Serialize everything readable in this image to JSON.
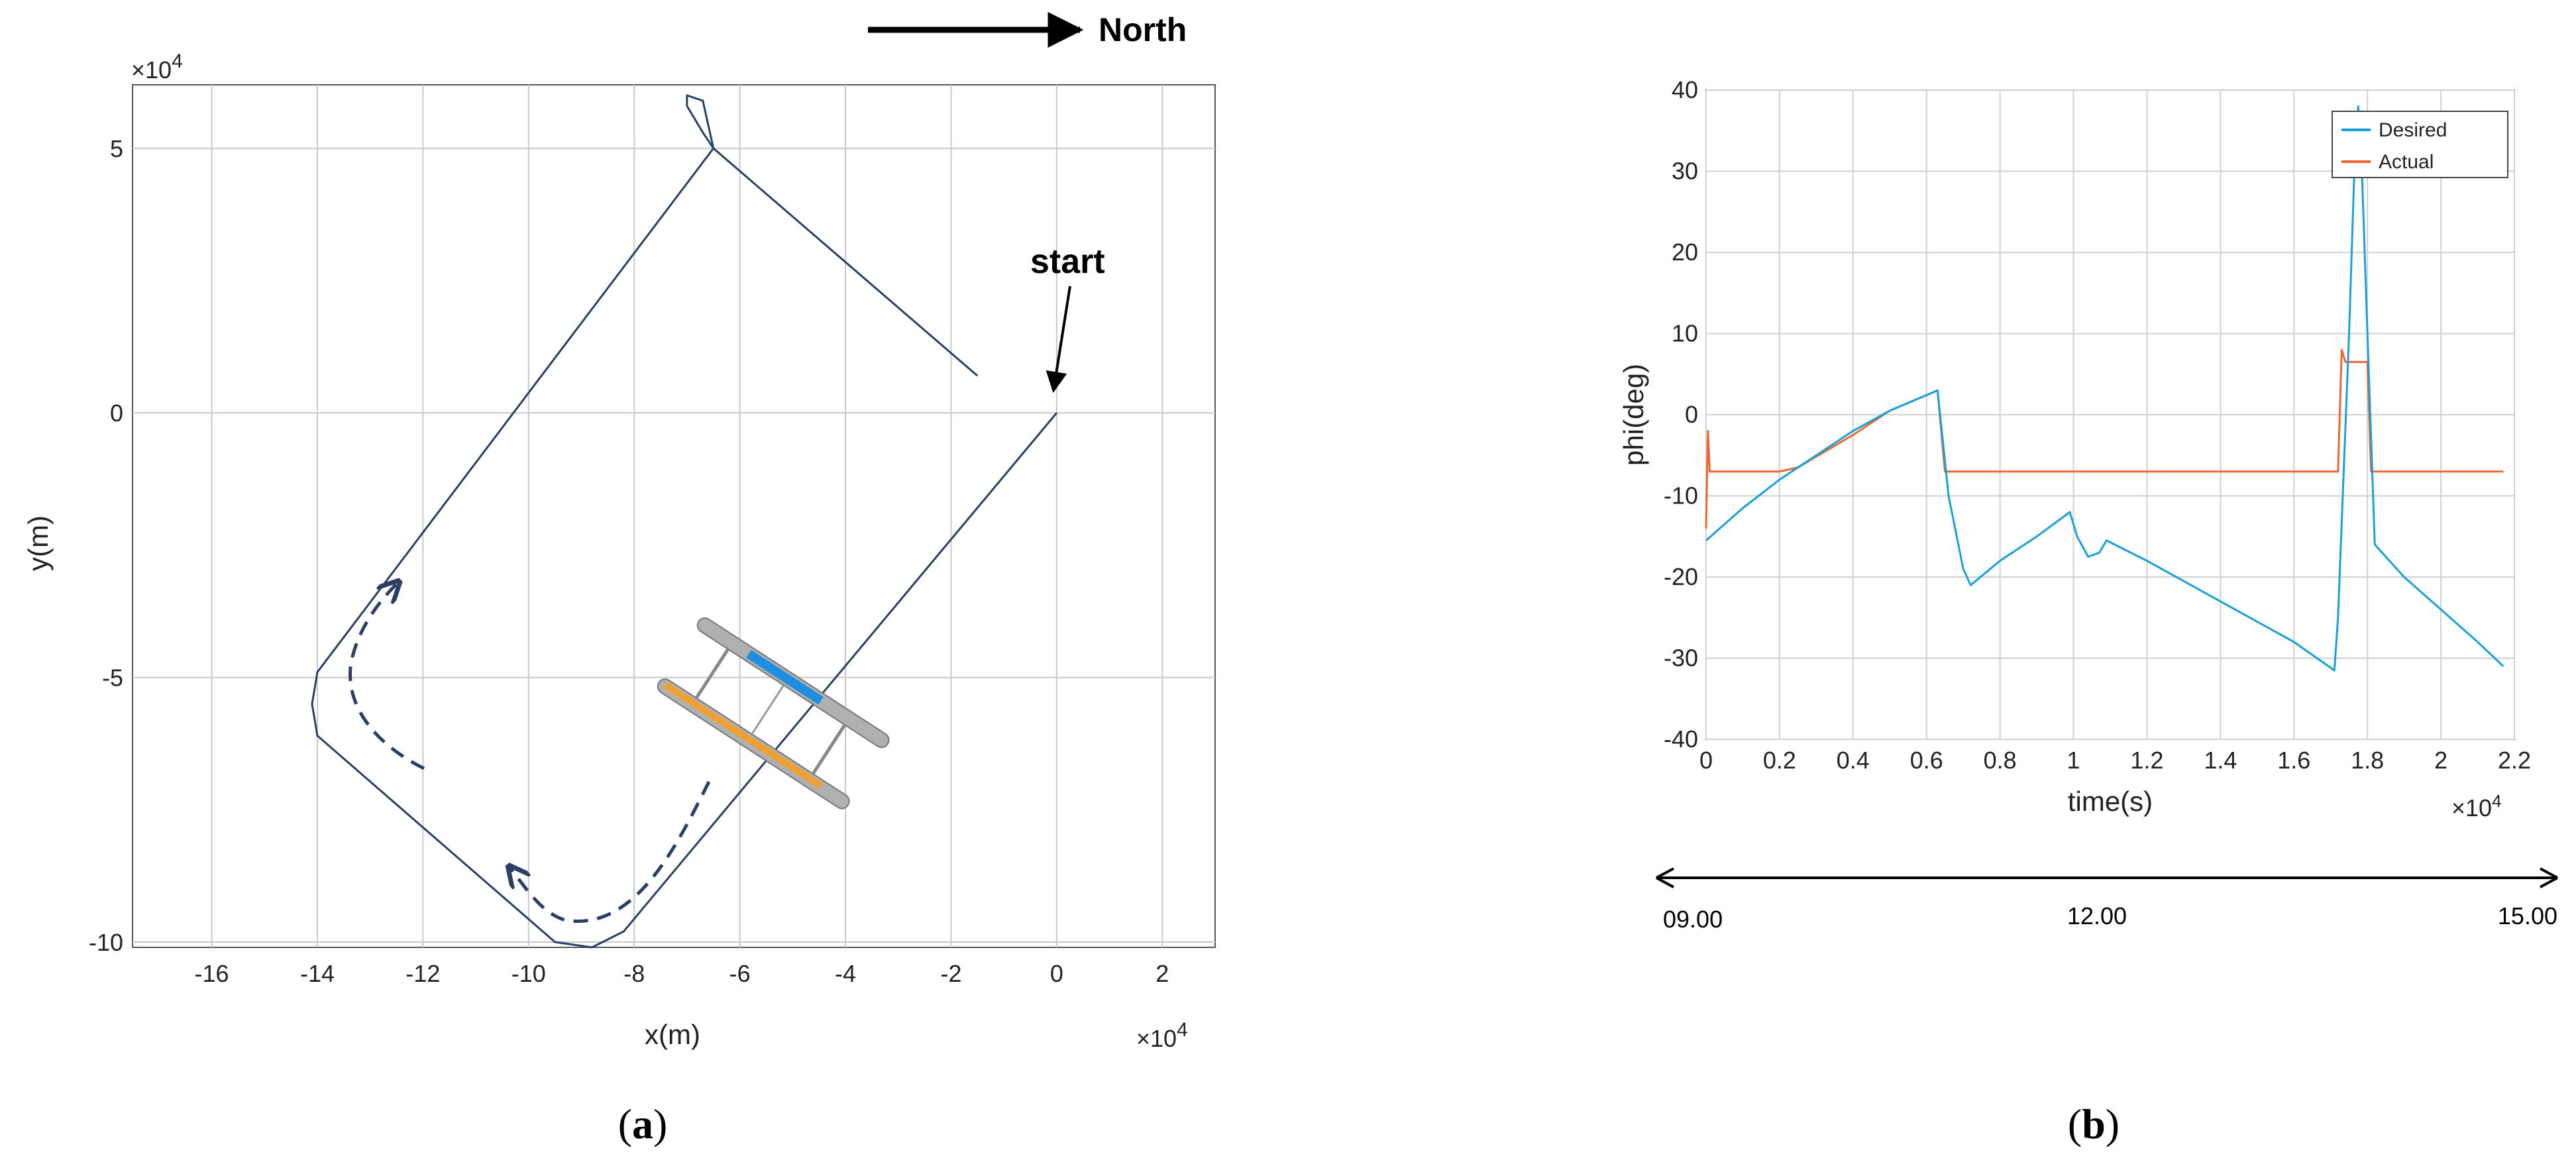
{
  "chart_data": [
    {
      "type": "line",
      "panel_label": "a",
      "xlabel": "x(m)",
      "ylabel": "y(m)",
      "x_exponent": "×10",
      "x_exponent_power": "4",
      "y_exponent": "×10",
      "y_exponent_power": "4",
      "xlim": [
        -17.5,
        3
      ],
      "ylim": [
        -10.1,
        6.2
      ],
      "xticks": [
        -16,
        -14,
        -12,
        -10,
        -8,
        -6,
        -4,
        -2,
        0,
        2
      ],
      "yticks": [
        -10,
        -5,
        0,
        5
      ],
      "grid": true,
      "series": [
        {
          "x": [
            -1.5,
            -6.5,
            -6.7,
            -7.0,
            -7.0,
            -6.7,
            -6.5,
            -14.0,
            -14.1,
            -14.0,
            -9.5,
            -8.8,
            -8.2,
            0
          ],
          "y": [
            0.7,
            5.0,
            5.3,
            5.8,
            6.0,
            5.9,
            5.0,
            -4.9,
            -5.5,
            -6.1,
            -10.0,
            -10.1,
            -9.8,
            0
          ]
        }
      ],
      "annotations": {
        "start": "start",
        "north": "North"
      },
      "color": "#2a3f63"
    },
    {
      "type": "line",
      "panel_label": "b",
      "xlabel": "time(s)",
      "ylabel": "phi(deg)",
      "x_exponent": "×10",
      "x_exponent_power": "4",
      "xlim": [
        0,
        2.2
      ],
      "ylim": [
        -40,
        40
      ],
      "xticks": [
        0,
        0.2,
        0.4,
        0.6,
        0.8,
        1,
        1.2,
        1.4,
        1.6,
        1.8,
        2,
        2.2
      ],
      "yticks": [
        -40,
        -30,
        -20,
        -10,
        0,
        10,
        20,
        30,
        40
      ],
      "grid": true,
      "legend": "top-right",
      "series": [
        {
          "name": "Desired",
          "color": "#1aa0d8",
          "x": [
            0,
            0.1,
            0.2,
            0.3,
            0.4,
            0.5,
            0.63,
            0.66,
            0.7,
            0.72,
            0.8,
            0.9,
            0.99,
            1.01,
            1.04,
            1.07,
            1.09,
            1.2,
            1.4,
            1.6,
            1.71,
            1.72,
            1.75,
            1.765,
            1.775,
            1.785,
            1.8,
            1.82,
            1.9,
            2.0,
            2.1,
            2.17
          ],
          "y": [
            -15.5,
            -11.5,
            -8,
            -5,
            -2,
            0.5,
            3,
            -10,
            -19,
            -21,
            -18,
            -15,
            -12,
            -15,
            -17.5,
            -17,
            -15.5,
            -18,
            -23,
            -28,
            -31.5,
            -25,
            10,
            31,
            38,
            30,
            10,
            -16,
            -20,
            -24,
            -28,
            -31
          ]
        },
        {
          "name": "Actual",
          "color": "#ee6633",
          "x": [
            0,
            0.005,
            0.01,
            0.03,
            0.2,
            0.25,
            0.4,
            0.5,
            0.63,
            0.65,
            0.7,
            1.0,
            1.5,
            1.72,
            1.73,
            1.74,
            1.75,
            1.8,
            1.81,
            1.82,
            2.0,
            2.17
          ],
          "y": [
            -14,
            -2,
            -7,
            -7,
            -7,
            -6.5,
            -2.5,
            0.5,
            3,
            -7,
            -7,
            -7,
            -7,
            -7,
            8,
            6.5,
            6.5,
            6.5,
            -7,
            -7,
            -7,
            -7
          ]
        }
      ]
    }
  ],
  "timeline": {
    "labels": [
      "09.00",
      "12.00",
      "15.00"
    ]
  }
}
